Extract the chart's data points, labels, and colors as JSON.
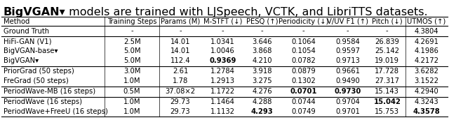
{
  "title_bold": "BigVGAN▾",
  "title_rest": " models are trained with LJSpeech, VCTK, and LibriTTS datasets.",
  "columns": [
    "Method",
    "Training Steps",
    "Params (M)",
    "M-STFT (↓)",
    "PESQ (↑)",
    "Periodicity (↓)",
    "V/UV F1 (↑)",
    "Pitch (↓)",
    "UTMOS (↑)"
  ],
  "rows": [
    [
      "Ground Truth",
      "-",
      "-",
      "-",
      "-",
      "-",
      "-",
      "-",
      "4.3804"
    ],
    [
      "HiFi-GAN (V1)",
      "2.5M",
      "14.01",
      "1.0341",
      "3.646",
      "0.1064",
      "0.9584",
      "26.839",
      "4.2691"
    ],
    [
      "BigVGAN-base▾",
      "5.0M",
      "14.01",
      "1.0046",
      "3.868",
      "0.1054",
      "0.9597",
      "25.142",
      "4.1986"
    ],
    [
      "BigVGAN▾",
      "5.0M",
      "112.4",
      "B:0.9369",
      "4.210",
      "0.0782",
      "0.9713",
      "19.019",
      "4.2172"
    ],
    [
      "PriorGrad (50 steps)",
      "3.0M",
      "2.61",
      "1.2784",
      "3.918",
      "0.0879",
      "0.9661",
      "17.728",
      "3.6282"
    ],
    [
      "FreGrad (50 steps)",
      "1.0M",
      "1.78",
      "1.2913",
      "3.275",
      "0.1302",
      "0.9490",
      "27.317",
      "3.1522"
    ],
    [
      "PeriodWave-MB (16 steps)",
      "0.5M",
      "37.08×2",
      "1.1722",
      "4.276",
      "B:0.0701",
      "B:0.9730",
      "15.143",
      "4.2940"
    ],
    [
      "PeriodWave (16 steps)",
      "1.0M",
      "29.73",
      "1.1464",
      "4.288",
      "0.0744",
      "0.9704",
      "B:15.042",
      "4.3243"
    ],
    [
      "PeriodWave+FreeU (16 steps)",
      "1.0M",
      "29.73",
      "1.1132",
      "B:4.293",
      "0.0749",
      "0.9701",
      "15.753",
      "B:4.3578"
    ]
  ],
  "sep_after_data_rows": [
    0,
    3,
    5,
    6
  ],
  "vbar_after_cols": [
    1,
    2,
    8
  ],
  "background_color": "#ffffff",
  "font_size": 7.2,
  "title_font_size": 11.5
}
